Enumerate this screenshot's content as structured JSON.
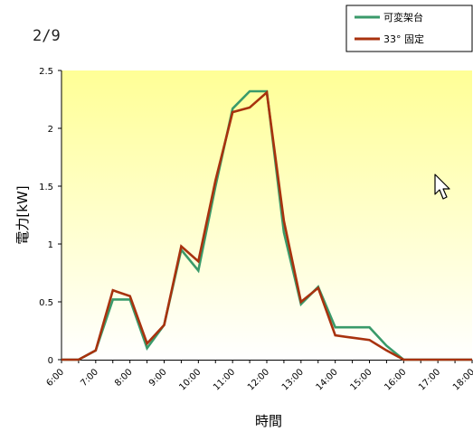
{
  "chart_data": {
    "type": "line",
    "title": "2/9",
    "xlabel": "時間",
    "ylabel": "電力[kW]",
    "ylim": [
      0,
      2.5
    ],
    "yticks": [
      "0",
      "0.5",
      "1",
      "1.5",
      "2",
      "2.5"
    ],
    "xtick_labels": [
      "6:00",
      "7:00",
      "8:00",
      "9:00",
      "10:00",
      "11:00",
      "12:00",
      "13:00",
      "14:00",
      "15:00",
      "16:00",
      "17:00",
      "18:00"
    ],
    "x": [
      "6:00",
      "6:30",
      "7:00",
      "7:30",
      "8:00",
      "8:30",
      "9:00",
      "9:30",
      "10:00",
      "10:30",
      "11:00",
      "11:30",
      "12:00",
      "12:30",
      "13:00",
      "13:30",
      "14:00",
      "14:30",
      "15:00",
      "15:30",
      "16:00",
      "16:30",
      "17:00",
      "17:30",
      "18:00"
    ],
    "series": [
      {
        "name": "可変架台",
        "color": "#3a9a6a",
        "values": [
          0,
          0,
          0.08,
          0.52,
          0.52,
          0.1,
          0.3,
          0.95,
          0.77,
          1.5,
          2.17,
          2.32,
          2.32,
          1.1,
          0.48,
          0.63,
          0.28,
          0.28,
          0.28,
          0.12,
          0,
          0,
          0,
          0,
          0
        ]
      },
      {
        "name": "33° 固定",
        "color": "#a8320e",
        "values": [
          0,
          0,
          0.08,
          0.6,
          0.55,
          0.14,
          0.3,
          0.98,
          0.85,
          1.55,
          2.14,
          2.18,
          2.31,
          1.2,
          0.5,
          0.62,
          0.21,
          0.19,
          0.17,
          0.08,
          0,
          0,
          0,
          0,
          0
        ]
      }
    ],
    "legend_position": "top-right",
    "plot_background": {
      "top_color": "#ffff96",
      "bottom_color": "#ffffff"
    },
    "grid": false
  }
}
